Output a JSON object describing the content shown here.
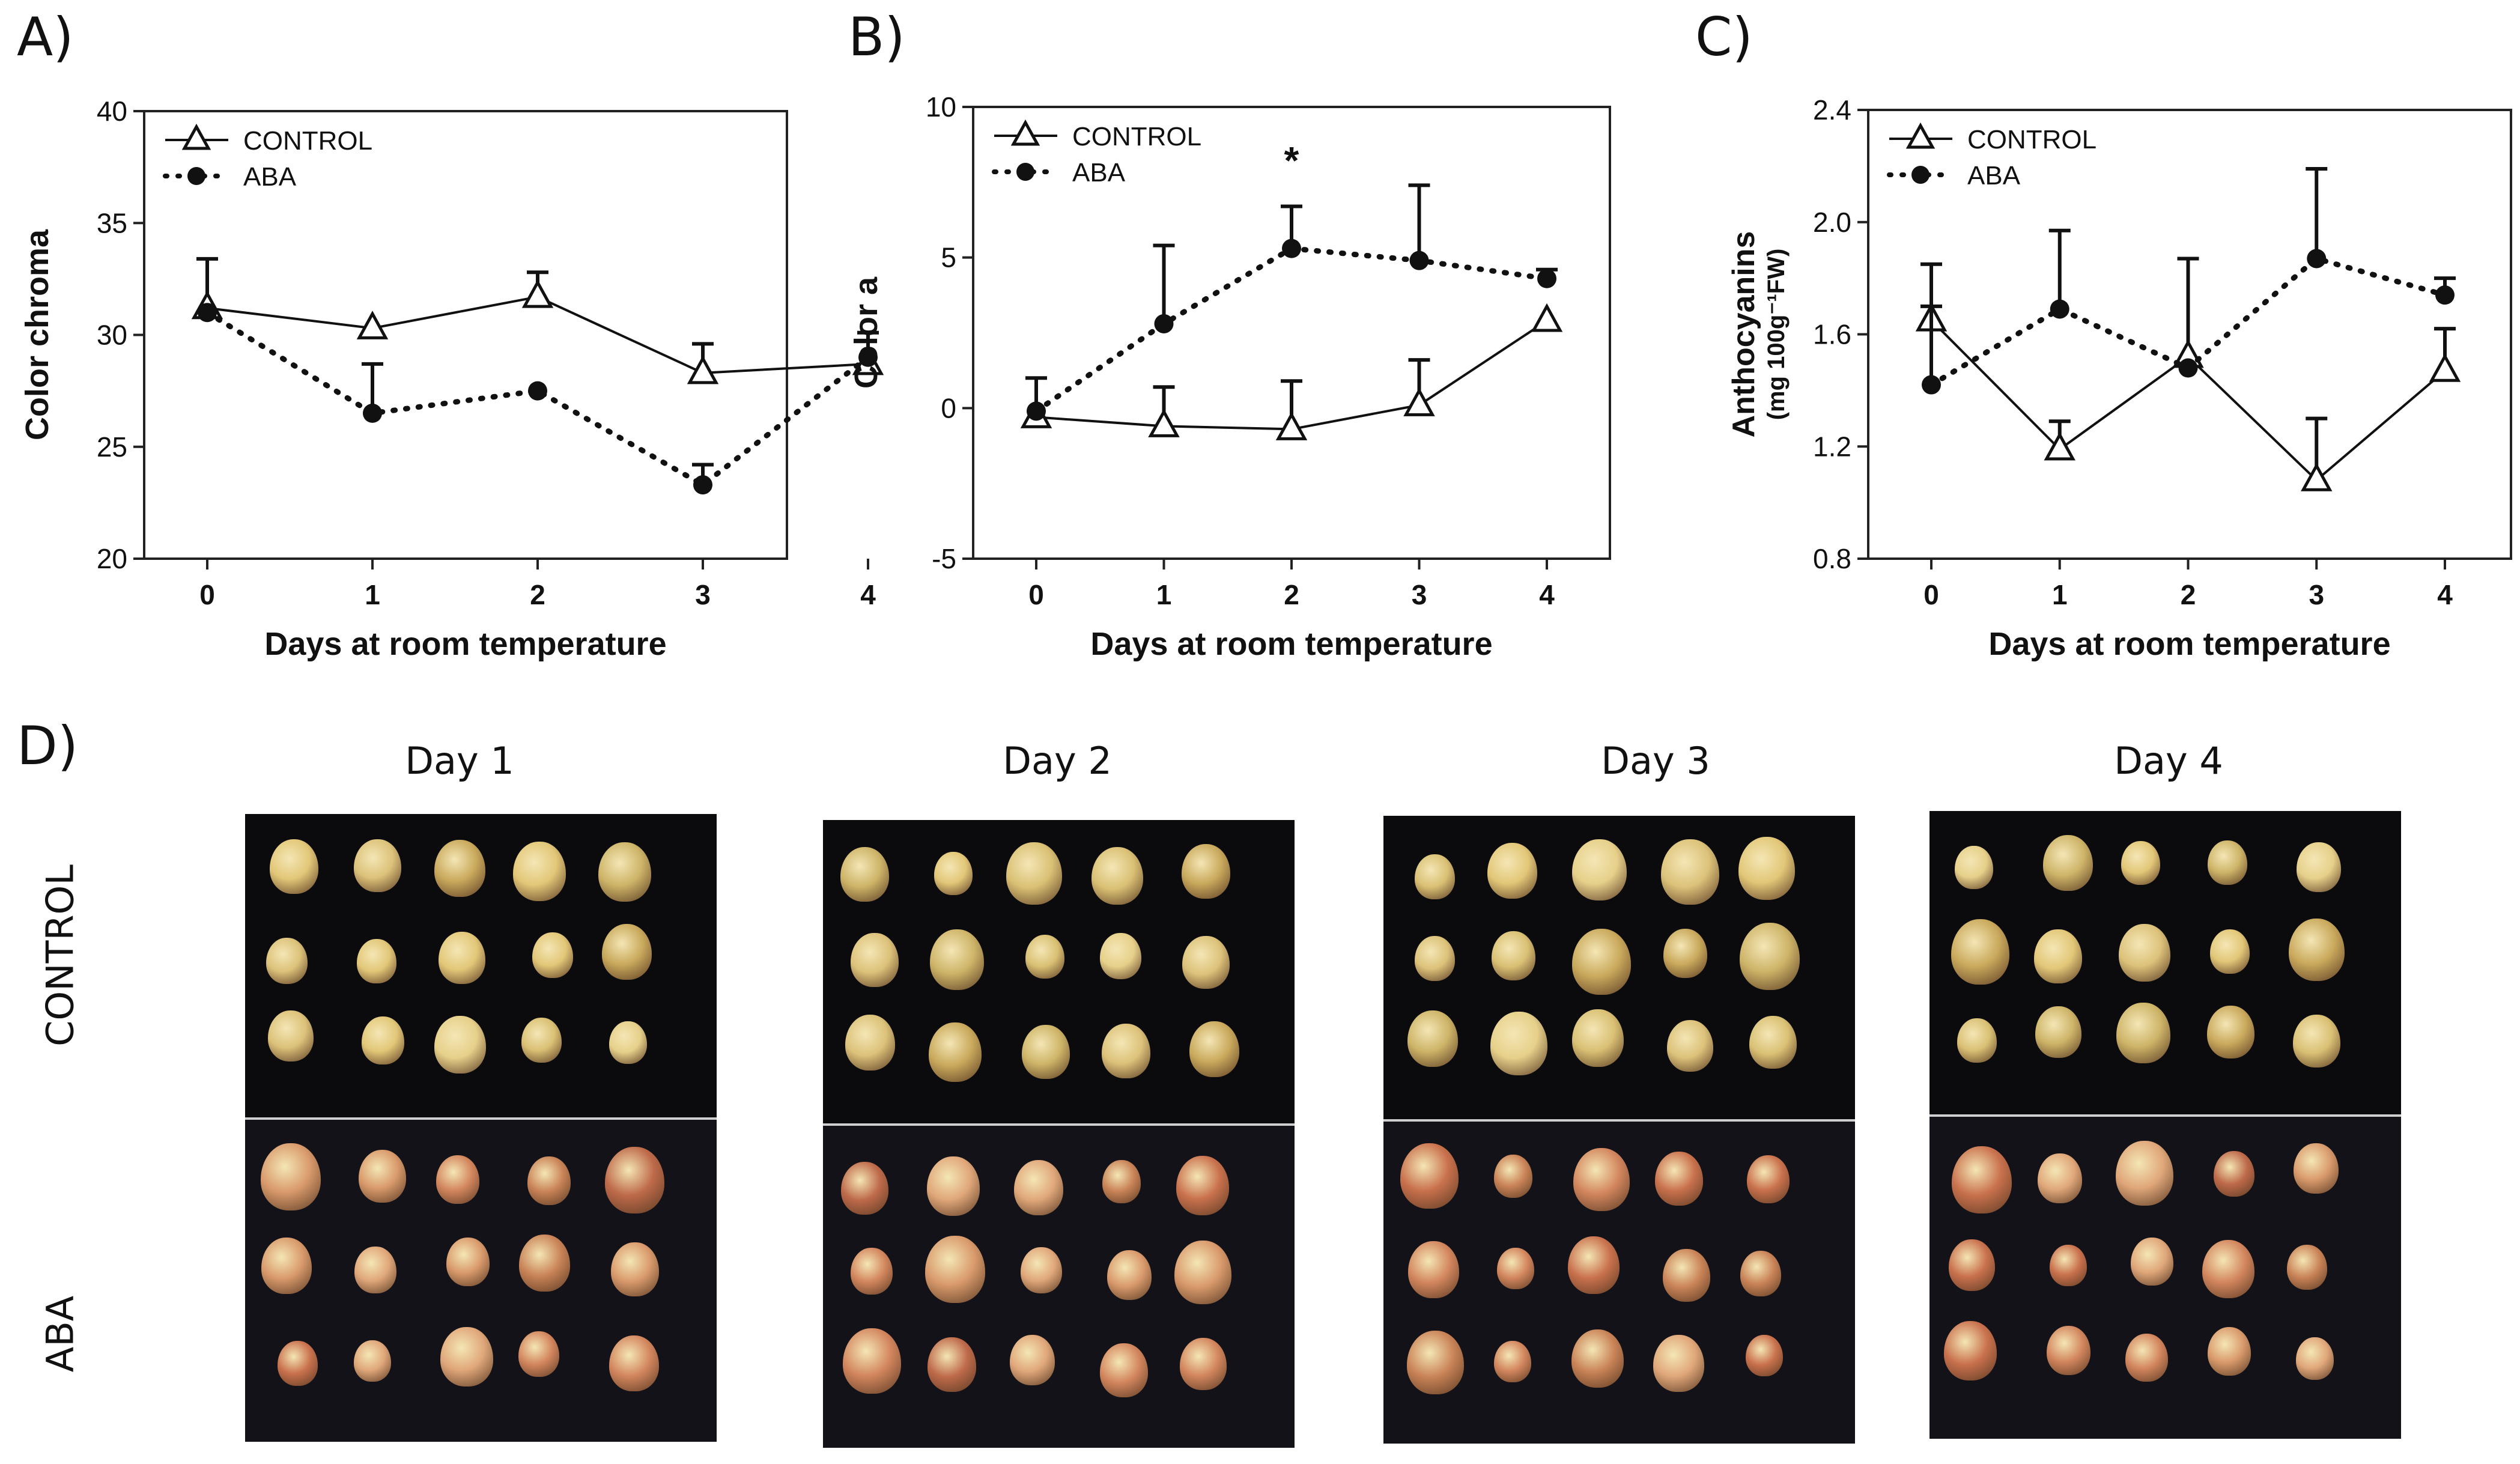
{
  "panel_labels": {
    "A": "A)",
    "B": "B)",
    "C": "C)",
    "D": "D)"
  },
  "chart_data": [
    {
      "type": "line",
      "panel": "A)",
      "title": "",
      "xlabel": "Days at room temperature",
      "ylabel": "Color chroma",
      "ylabel_sub": "",
      "x": [
        0,
        1,
        2,
        3,
        4
      ],
      "xticks": [
        "0",
        "1",
        "2",
        "3",
        "4"
      ],
      "ylim": [
        20,
        40
      ],
      "yticks": [
        20,
        25,
        30,
        35,
        40
      ],
      "legend": [
        "CONTROL",
        "ABA"
      ],
      "series": [
        {
          "name": "CONTROL",
          "marker": "open-triangle",
          "line": "solid",
          "values": [
            31.2,
            30.3,
            31.7,
            28.3,
            28.7
          ],
          "err": [
            2.2,
            0.0,
            1.1,
            1.3,
            1.4
          ]
        },
        {
          "name": "ABA",
          "marker": "filled-circle",
          "line": "dotted",
          "values": [
            31.0,
            26.5,
            27.5,
            23.3,
            29.0
          ],
          "err": [
            0.0,
            2.2,
            0.0,
            0.9,
            0.0
          ]
        }
      ],
      "annotations": []
    },
    {
      "type": "line",
      "panel": "B)",
      "title": "",
      "xlabel": "Days at room temperature",
      "ylabel": "Color a",
      "ylabel_sub": "",
      "x": [
        0,
        1,
        2,
        3,
        4
      ],
      "xticks": [
        "0",
        "1",
        "2",
        "3",
        "4"
      ],
      "ylim": [
        -5,
        10
      ],
      "yticks": [
        -5,
        0,
        5,
        10
      ],
      "legend": [
        "CONTROL",
        "ABA"
      ],
      "series": [
        {
          "name": "CONTROL",
          "marker": "open-triangle",
          "line": "solid",
          "values": [
            -0.3,
            -0.6,
            -0.7,
            0.1,
            2.9
          ],
          "err": [
            1.3,
            1.3,
            1.6,
            1.5,
            0.0
          ]
        },
        {
          "name": "ABA",
          "marker": "filled-circle",
          "line": "dotted",
          "values": [
            -0.1,
            2.8,
            5.3,
            4.9,
            4.3
          ],
          "err": [
            0.0,
            2.6,
            1.4,
            2.5,
            0.3
          ]
        }
      ],
      "annotations": [
        {
          "text": "*",
          "x": 2,
          "y": 8.3
        }
      ]
    },
    {
      "type": "line",
      "panel": "C)",
      "title": "",
      "xlabel": "Days at room temperature",
      "ylabel": "Anthocyanins",
      "ylabel_sub": "(mg 100g⁻¹FW)",
      "x": [
        0,
        1,
        2,
        3,
        4
      ],
      "xticks": [
        "0",
        "1",
        "2",
        "3",
        "4"
      ],
      "ylim": [
        0.8,
        2.4
      ],
      "yticks": [
        0.8,
        1.2,
        1.6,
        2.0,
        2.4
      ],
      "ytick_labels": [
        "0.8",
        "1.2",
        "1.6",
        "2.0",
        "2.4"
      ],
      "legend": [
        "CONTROL",
        "ABA"
      ],
      "series": [
        {
          "name": "CONTROL",
          "marker": "open-triangle",
          "line": "solid",
          "values": [
            1.65,
            1.19,
            1.52,
            1.08,
            1.47
          ],
          "err": [
            0.2,
            0.1,
            0.35,
            0.22,
            0.15
          ]
        },
        {
          "name": "ABA",
          "marker": "filled-circle",
          "line": "dotted",
          "values": [
            1.42,
            1.69,
            1.48,
            1.87,
            1.74
          ],
          "err": [
            0.28,
            0.28,
            0.0,
            0.32,
            0.06
          ]
        }
      ],
      "annotations": []
    }
  ],
  "photos": {
    "days": [
      "Day 1",
      "Day 2",
      "Day 3",
      "Day 4"
    ],
    "rows": [
      "CONTROL",
      "ABA"
    ]
  }
}
